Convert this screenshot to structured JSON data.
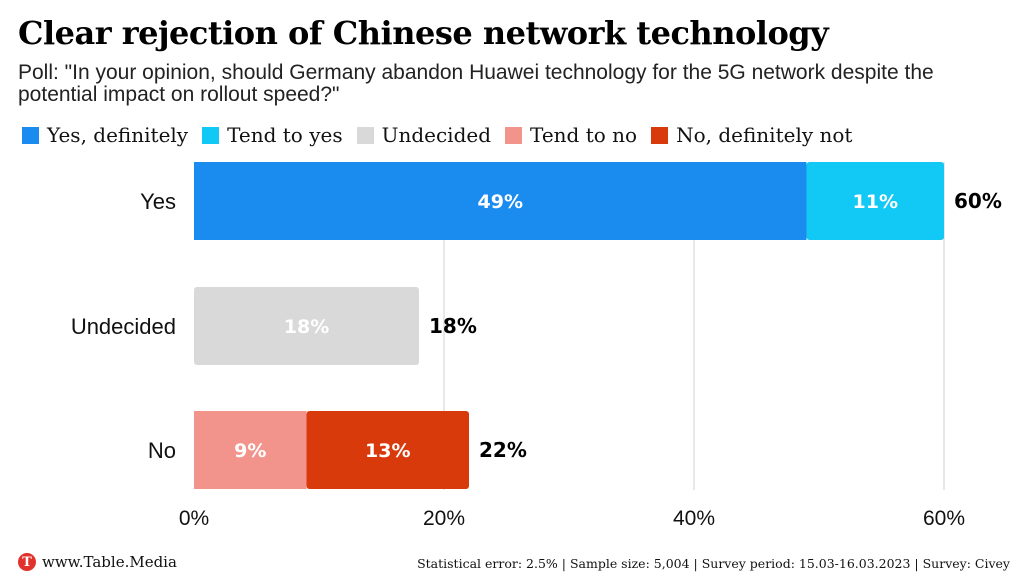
{
  "header": {
    "title": "Clear rejection of Chinese network technology",
    "subtitle": "Poll: \"In your opinion, should Germany abandon Huawei technology for the 5G network despite the potential impact on rollout speed?\""
  },
  "legend": [
    {
      "label": "Yes, definitely",
      "color": "#1a8cf0"
    },
    {
      "label": "Tend to yes",
      "color": "#12c8f5"
    },
    {
      "label": "Undecided",
      "color": "#d9d9d9"
    },
    {
      "label": "Tend to no",
      "color": "#f2948c"
    },
    {
      "label": "No, definitely not",
      "color": "#d93a0b"
    }
  ],
  "chart_data": {
    "type": "bar",
    "orientation": "horizontal",
    "stacked": true,
    "categories": [
      "Yes",
      "Undecided",
      "No"
    ],
    "series": [
      {
        "name": "Yes, definitely",
        "values": [
          49,
          0,
          0
        ],
        "color": "#1a8cf0",
        "labels": [
          "49%",
          "",
          ""
        ]
      },
      {
        "name": "Tend to yes",
        "values": [
          11,
          0,
          0
        ],
        "color": "#12c8f5",
        "labels": [
          "11%",
          "",
          ""
        ]
      },
      {
        "name": "Undecided",
        "values": [
          0,
          18,
          0
        ],
        "color": "#d9d9d9",
        "labels": [
          "",
          "18%",
          ""
        ]
      },
      {
        "name": "Tend to no",
        "values": [
          0,
          0,
          9
        ],
        "color": "#f2948c",
        "labels": [
          "",
          "",
          "9%"
        ]
      },
      {
        "name": "No, definitely not",
        "values": [
          0,
          0,
          13
        ],
        "color": "#d93a0b",
        "labels": [
          "",
          "",
          "13%"
        ]
      }
    ],
    "totals": [
      "60%",
      "18%",
      "22%"
    ],
    "xlim": [
      0,
      60
    ],
    "xticks": [
      0,
      20,
      40,
      60
    ],
    "xtick_labels": [
      "0%",
      "20%",
      "40%",
      "60%"
    ],
    "grid": true,
    "legend_position": "top"
  },
  "footer": {
    "logo_letter": "T",
    "brand": "www.Table.Media",
    "note": "Statistical error: 2.5% | Sample size: 5,004 | Survey period: 15.03-16.03.2023 | Survey: Civey"
  }
}
